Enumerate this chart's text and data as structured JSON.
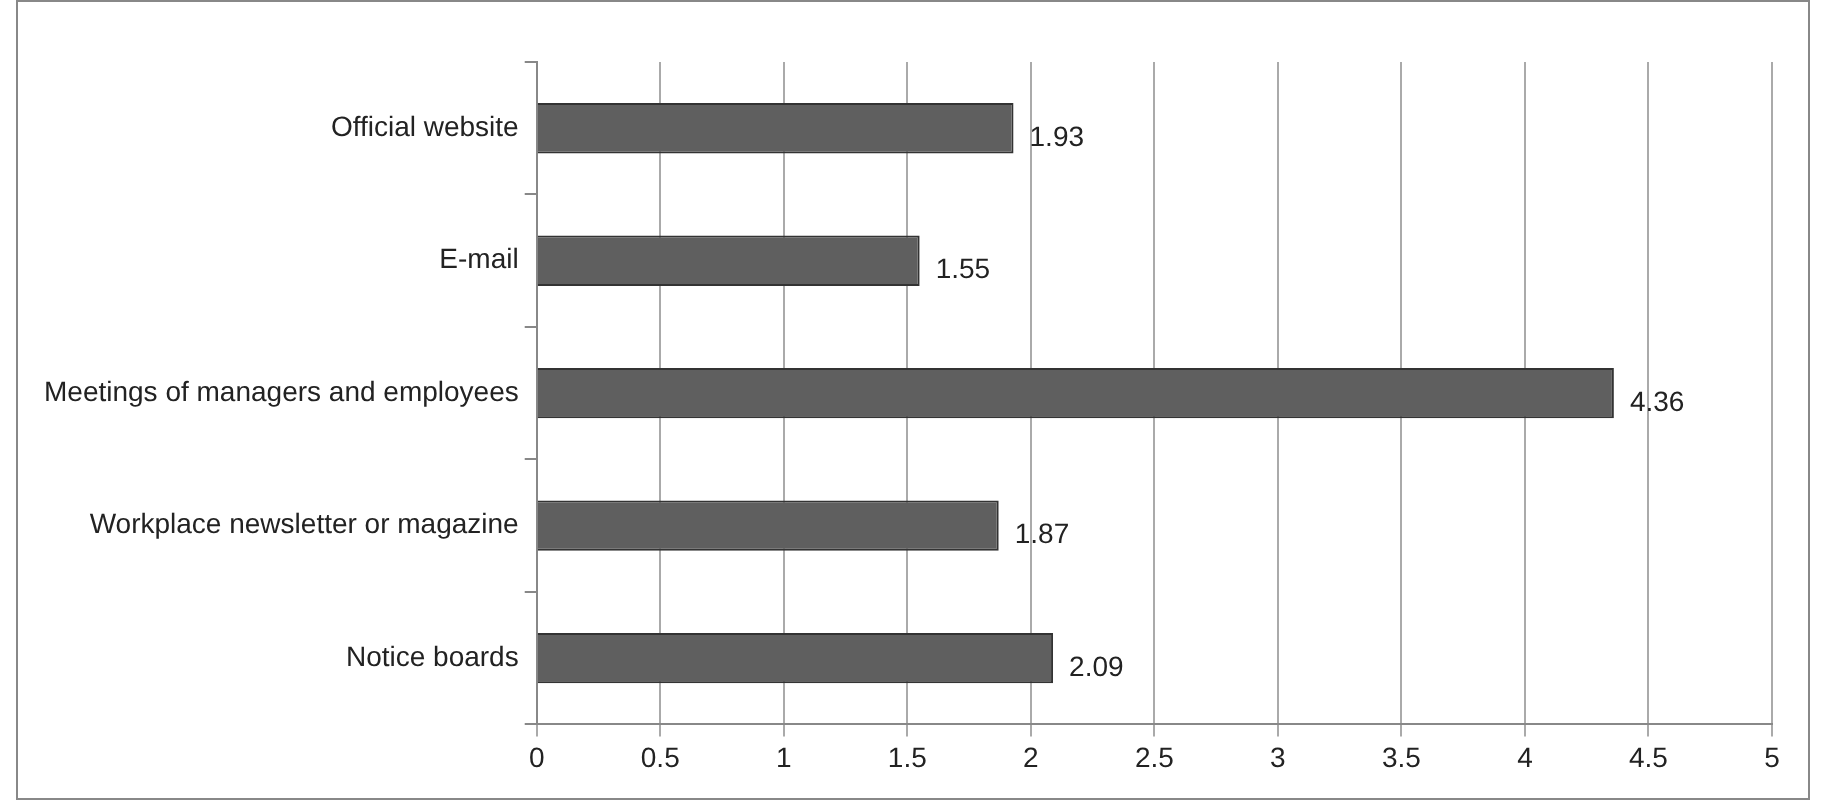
{
  "chart_data": {
    "type": "bar",
    "orientation": "horizontal",
    "categories": [
      "Official website",
      "E-mail",
      "Meetings of managers and employees",
      "Workplace newsletter or magazine",
      "Notice boards"
    ],
    "values": [
      1.93,
      1.55,
      4.36,
      1.87,
      2.09
    ],
    "color": "#5f5f5f",
    "xlim": [
      0,
      5
    ],
    "xticks": [
      0,
      0.5,
      1,
      1.5,
      2,
      2.5,
      3,
      3.5,
      4,
      4.5,
      5
    ],
    "grid": "x",
    "data_labels": true
  }
}
